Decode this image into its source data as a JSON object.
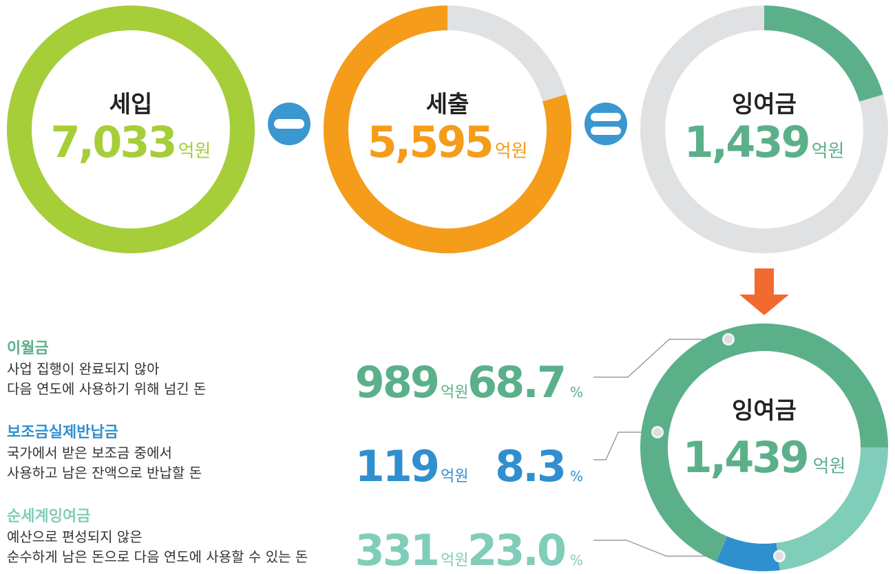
{
  "top": [
    {
      "title": "세입",
      "amount": {
        "value": 7033,
        "label": "7,033"
      },
      "unit": "억원",
      "color": "#a6ce39"
    },
    {
      "title": "세출",
      "amount": {
        "value": 5595,
        "label": "5,595"
      },
      "unit": "억원",
      "color": "#f59c1a"
    },
    {
      "title": "잉여금",
      "amount": {
        "value": 1439,
        "label": "1,439"
      },
      "unit": "억원",
      "color": "#5bb08a"
    }
  ],
  "breakdown": {
    "title": "잉여금",
    "amount": {
      "value": 1439,
      "label": "1,439"
    },
    "unit": "억원",
    "items": [
      {
        "name": "이월금",
        "description": [
          "사업 집행이 완료되지 않아",
          "다음 연도에 사용하기 위해 넘긴 돈"
        ],
        "amount": 989,
        "unit": "억원",
        "percent": 68.7,
        "percent_unit": "%",
        "color": "#5bb08a"
      },
      {
        "name": "보조금실제반납금",
        "description": [
          "국가에서 받은 보조금 중에서",
          "사용하고 남은 잔액으로 반납할 돈"
        ],
        "amount": 119,
        "unit": "억원",
        "percent": 8.3,
        "percent_unit": "%",
        "color": "#2f8fcf"
      },
      {
        "name": "순세계잉여금",
        "description": [
          "예산으로 편성되지 않은",
          "순수하게 남은 돈으로 다음 연도에 사용할 수 있는 돈"
        ],
        "amount": 331,
        "unit": "억원",
        "percent": {
          "value": 23,
          "label": "23.0"
        },
        "percent_unit": "%",
        "color": "#80cdb9"
      }
    ]
  }
}
